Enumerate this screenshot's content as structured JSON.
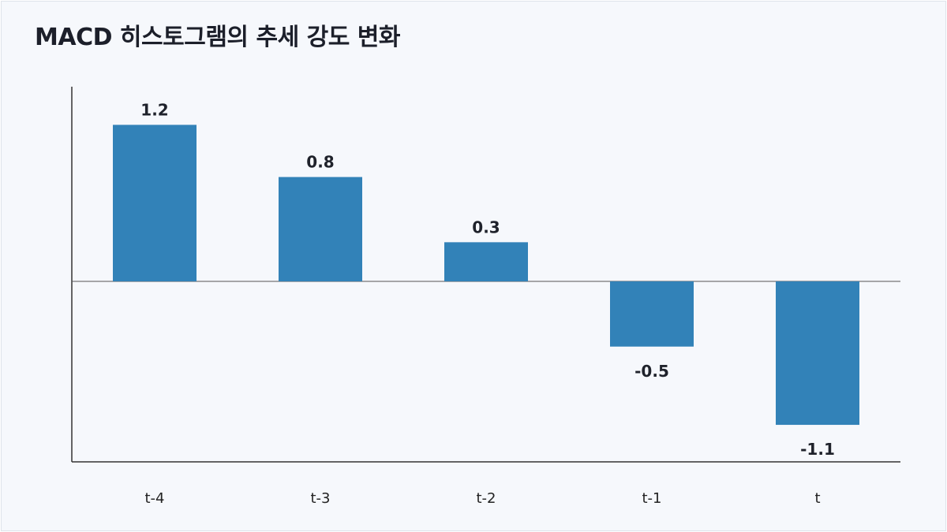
{
  "title": "MACD 히스토그램의 추세 강도 변화",
  "colors": {
    "bar": "#3282b8",
    "axis": "#333333"
  },
  "chart_data": {
    "type": "bar",
    "title": "MACD 히스토그램의 추세 강도 변화",
    "categories": [
      "t-4",
      "t-3",
      "t-2",
      "t-1",
      "t"
    ],
    "values": [
      1.2,
      0.8,
      0.3,
      -0.5,
      -1.1
    ],
    "data_labels": [
      "1.2",
      "0.8",
      "0.3",
      "-0.5",
      "-1.1"
    ],
    "xlabel": "",
    "ylabel": "",
    "ylim": [
      -1.4,
      1.5
    ],
    "grid": false,
    "legend": "none"
  }
}
